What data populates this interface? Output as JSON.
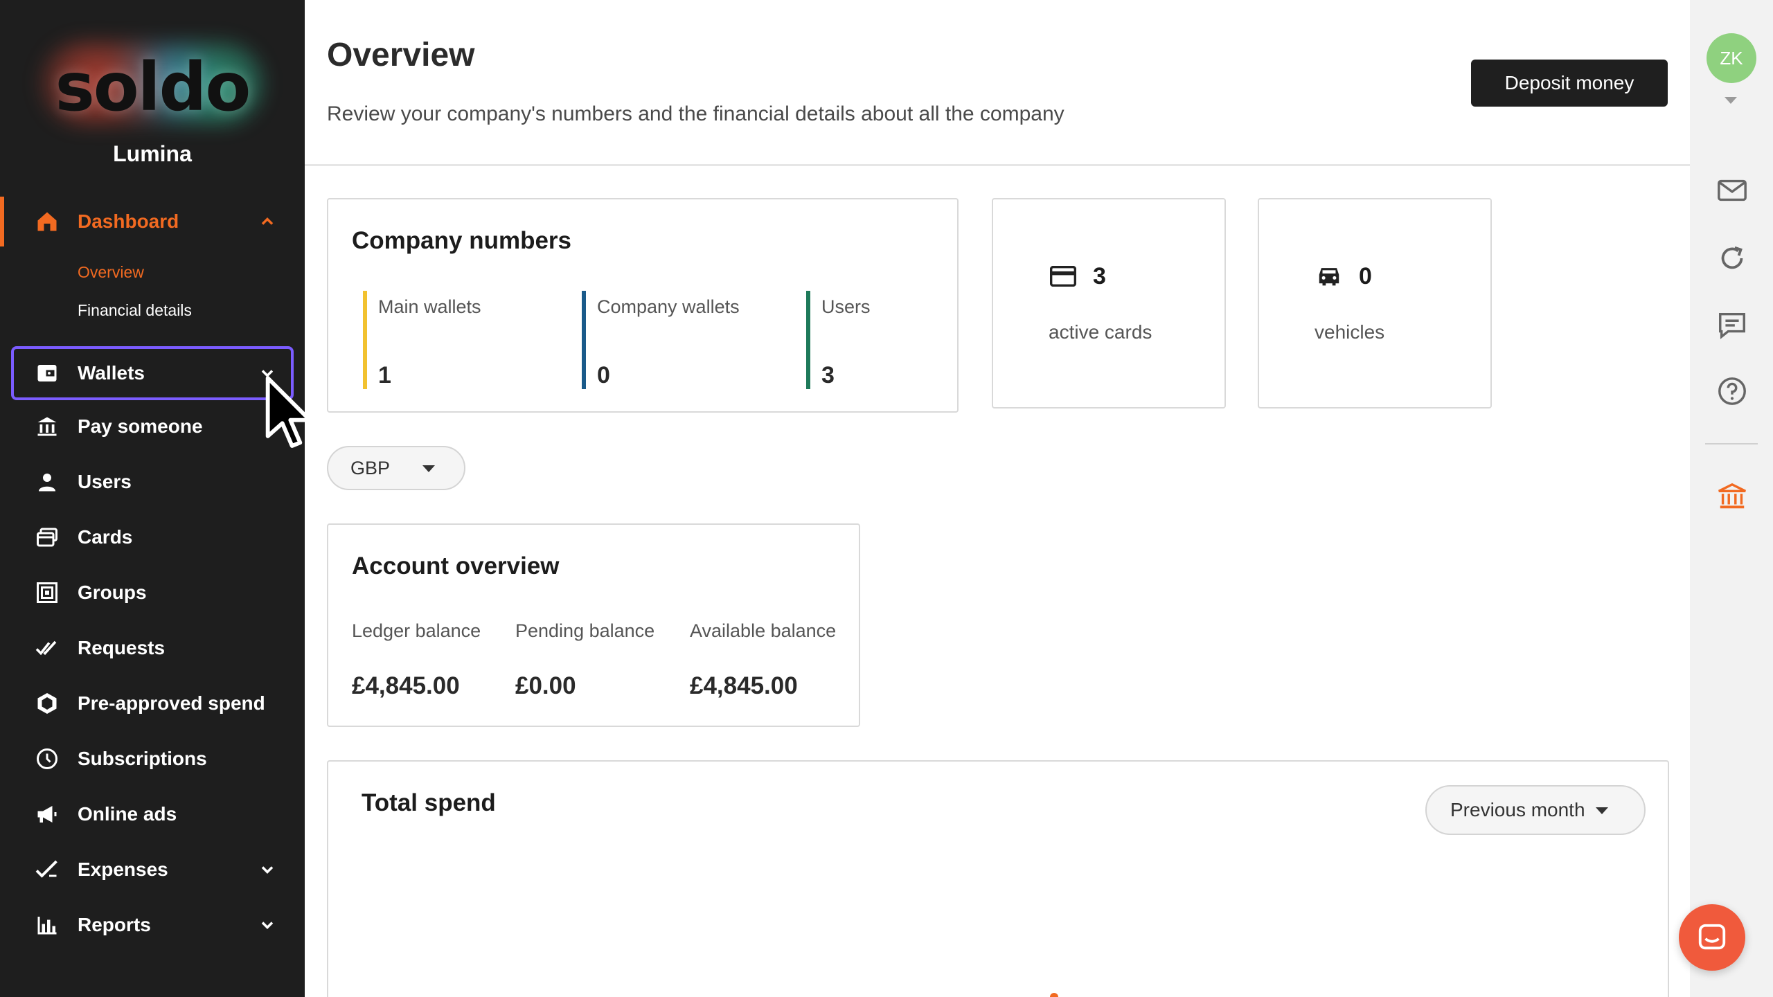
{
  "sidebar": {
    "logo_text": "soldo",
    "company": "Lumina",
    "items": [
      {
        "label": "Dashboard"
      },
      {
        "label": "Wallets"
      },
      {
        "label": "Pay someone"
      },
      {
        "label": "Users"
      },
      {
        "label": "Cards"
      },
      {
        "label": "Groups"
      },
      {
        "label": "Requests"
      },
      {
        "label": "Pre-approved spend"
      },
      {
        "label": "Subscriptions"
      },
      {
        "label": "Online ads"
      },
      {
        "label": "Expenses"
      },
      {
        "label": "Reports"
      }
    ],
    "dashboard_sub": [
      "Overview",
      "Financial details"
    ],
    "accent_color": "#f26a21",
    "highlight_color": "#7b5cff"
  },
  "header": {
    "title": "Overview",
    "subtitle": "Review your company's numbers and the financial details about all the company",
    "deposit_label": "Deposit money"
  },
  "company_numbers": {
    "title": "Company numbers",
    "metrics": [
      {
        "label": "Main wallets",
        "value": "1",
        "color": "#f2c230"
      },
      {
        "label": "Company wallets",
        "value": "0",
        "color": "#1a5a8a"
      },
      {
        "label": "Users",
        "value": "3",
        "color": "#1e7a5a"
      }
    ]
  },
  "active_cards": {
    "value": "3",
    "label": "active cards",
    "icon": "credit-card-icon"
  },
  "vehicles": {
    "value": "0",
    "label": "vehicles",
    "icon": "car-icon"
  },
  "currency": {
    "selected": "GBP"
  },
  "account_overview": {
    "title": "Account overview",
    "balances": [
      {
        "label": "Ledger balance",
        "value": "£4,845.00"
      },
      {
        "label": "Pending balance",
        "value": "£0.00"
      },
      {
        "label": "Available balance",
        "value": "£4,845.00"
      }
    ]
  },
  "total_spend": {
    "title": "Total spend",
    "period": "Previous month"
  },
  "user": {
    "initials": "ZK",
    "avatar_color": "#8fd17f"
  },
  "rail": {
    "icons": [
      "mail-icon",
      "refresh-icon",
      "chat-icon",
      "help-icon",
      "bank-icon"
    ]
  }
}
